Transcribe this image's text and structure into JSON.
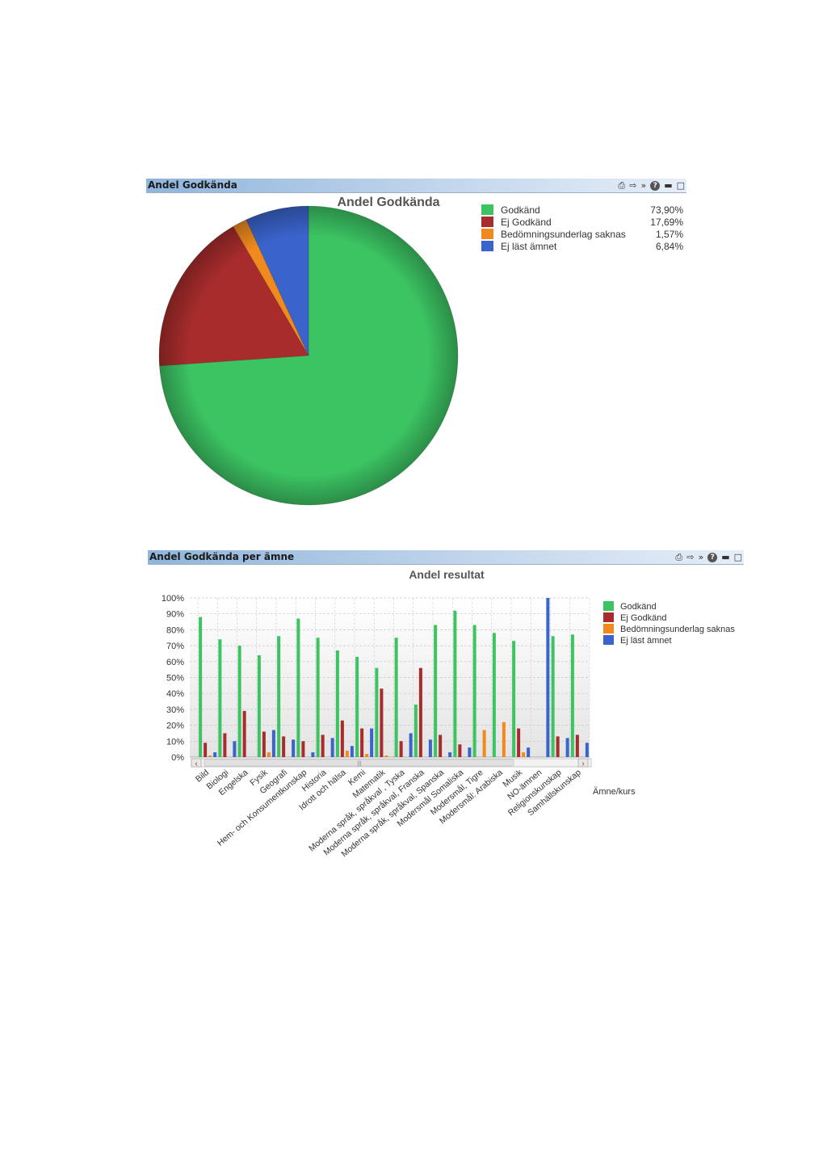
{
  "panel1": {
    "title": "Andel Godkända",
    "icons": [
      "print-icon",
      "export-excel-icon",
      "more-icon",
      "help-icon",
      "minimize-icon",
      "maximize-icon"
    ]
  },
  "panel2": {
    "title": "Andel Godkända per ämne",
    "icons": [
      "print-icon",
      "export-excel-icon",
      "more-icon",
      "help-icon",
      "minimize-icon",
      "maximize-icon"
    ]
  },
  "colors": {
    "godkand": "#3cc463",
    "ej_godkand": "#a82c2c",
    "bedomning": "#f08a1e",
    "ej_last": "#3a64cc"
  },
  "chart_data": [
    {
      "type": "pie",
      "title": "Andel Godkända",
      "legend_position": "top-right",
      "slices": [
        {
          "label": "Godkänd",
          "value": 73.9,
          "display": "73,90%"
        },
        {
          "label": "Ej Godkänd",
          "value": 17.69,
          "display": "17,69%"
        },
        {
          "label": "Bedömningsunderlag saknas",
          "value": 1.57,
          "display": "1,57%"
        },
        {
          "label": "Ej läst ämnet",
          "value": 6.84,
          "display": "6,84%"
        }
      ]
    },
    {
      "type": "bar",
      "title": "Andel resultat",
      "xlabel": "Ämne/kurs",
      "ylabel": "",
      "ylim": [
        0,
        100
      ],
      "yticks": [
        "0%",
        "10%",
        "20%",
        "30%",
        "40%",
        "50%",
        "60%",
        "70%",
        "80%",
        "90%",
        "100%"
      ],
      "grid": true,
      "legend_position": "right",
      "categories": [
        "Bild",
        "Biologi",
        "Engelska",
        "Fysik",
        "Geografi",
        "Hem- och Konsumentkunskap",
        "Historia",
        "Idrott och hälsa",
        "Kemi",
        "Matematik",
        "Moderna språk, språkval , Tyska",
        "Moderna språk, språkval, Franska",
        "Moderna språk, språkval, Spanska",
        "Modersmål Somaliska",
        "Modersmål, Tigre",
        "Modersmål: Arabiska",
        "Musik",
        "NO-ämnen",
        "Religionskunskap",
        "Samhällskunskap"
      ],
      "series": [
        {
          "name": "Godkänd",
          "values": [
            88,
            74,
            70,
            64,
            76,
            87,
            75,
            67,
            63,
            56,
            75,
            33,
            83,
            92,
            83,
            78,
            73,
            0,
            76,
            77
          ]
        },
        {
          "name": "Ej Godkänd",
          "values": [
            9,
            15,
            29,
            16,
            13,
            10,
            14,
            23,
            18,
            43,
            10,
            56,
            14,
            8,
            0,
            0,
            18,
            0,
            13,
            14
          ]
        },
        {
          "name": "Bedömningsunderlag saknas",
          "values": [
            1,
            0,
            0,
            3,
            0,
            0,
            0,
            4,
            2,
            1,
            0,
            0,
            0,
            0,
            17,
            22,
            3,
            0,
            0,
            0
          ]
        },
        {
          "name": "Ej läst ämnet",
          "values": [
            3,
            10,
            0,
            17,
            11,
            3,
            12,
            7,
            18,
            0,
            15,
            11,
            3,
            6,
            0,
            0,
            6,
            100,
            12,
            9
          ]
        }
      ]
    }
  ]
}
